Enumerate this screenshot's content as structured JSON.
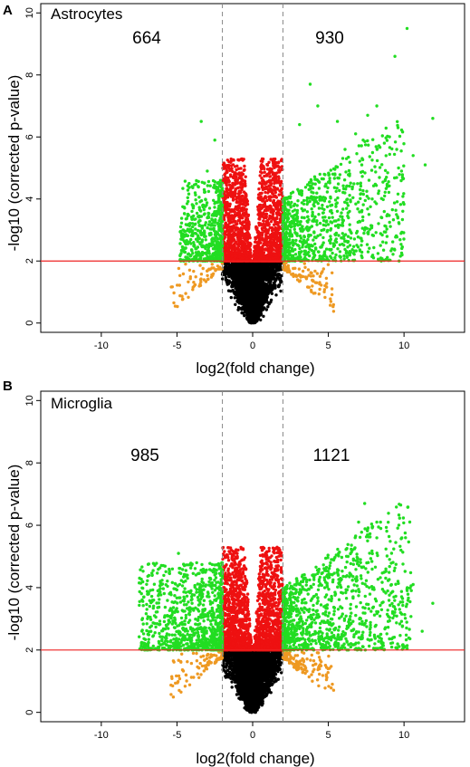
{
  "chart_data": [
    {
      "type": "scatter",
      "panel_label": "A",
      "title": "Astrocytes",
      "xlabel": "log2(fold change)",
      "ylabel": "-log10 (corrected p-value)",
      "xlim": [
        -14,
        14
      ],
      "ylim": [
        -0.3,
        10.3
      ],
      "xticks": [
        -10,
        -5,
        0,
        5,
        10
      ],
      "yticks": [
        0,
        2,
        4,
        6,
        8,
        10
      ],
      "threshold_y": 2,
      "threshold_x": [
        -2,
        2
      ],
      "counts": {
        "down": "664",
        "up": "930"
      },
      "colors": {
        "significant_fc": "#22dd22",
        "significant_small_fc": "#ee1111",
        "nonsig_fc": "#ee9922",
        "nonsig": "#000000",
        "threshold_line": "#ee2222",
        "fc_line": "#888888"
      },
      "series": [
        {
          "name": "up_highlight",
          "color": "#22dd22",
          "x": [
            10.2,
            9.4,
            11.9,
            9.6,
            7.6,
            8.2,
            3.8,
            5.6,
            4.3,
            6.8,
            3.1,
            7.3,
            11.4,
            6.1,
            8.7,
            10.6,
            9.5,
            5.3,
            7.9,
            4.7,
            3.6,
            6.4,
            2.6,
            8.9,
            3.4
          ],
          "y": [
            9.5,
            8.6,
            6.6,
            6.3,
            6.7,
            7.0,
            7.7,
            6.5,
            7.0,
            6.1,
            6.4,
            5.9,
            5.1,
            5.6,
            5.8,
            5.4,
            3.5,
            4.8,
            4.0,
            3.3,
            3.1,
            3.6,
            2.4,
            4.4,
            2.8
          ]
        },
        {
          "name": "down_highlight",
          "color": "#22dd22",
          "x": [
            -3.4,
            -2.5,
            -3.8,
            -4.2,
            -2.9,
            -3.3,
            -2.4,
            -4.6,
            -3.0,
            -2.2,
            -3.9,
            -2.7
          ],
          "y": [
            6.5,
            5.9,
            4.2,
            4.5,
            3.4,
            2.9,
            2.5,
            3.0,
            4.9,
            3.7,
            2.6,
            3.2
          ]
        }
      ],
      "scatter_params": {
        "up_n": 900,
        "down_n": 650,
        "sig_n": 1900,
        "ns_n": 2600,
        "orange_n": 160
      }
    },
    {
      "type": "scatter",
      "panel_label": "B",
      "title": "Microglia",
      "xlabel": "log2(fold change)",
      "ylabel": "-log10 (corrected p-value)",
      "xlim": [
        -14,
        14
      ],
      "ylim": [
        -0.3,
        10.3
      ],
      "xticks": [
        -10,
        -5,
        0,
        5,
        10
      ],
      "yticks": [
        0,
        2,
        4,
        6,
        8,
        10
      ],
      "threshold_y": 2,
      "threshold_x": [
        -2,
        2
      ],
      "counts": {
        "down": "985",
        "up": "1121"
      },
      "colors": {
        "significant_fc": "#22dd22",
        "significant_small_fc": "#ee1111",
        "nonsig_fc": "#ee9922",
        "nonsig": "#000000",
        "threshold_line": "#ee2222",
        "fc_line": "#888888"
      },
      "series": [
        {
          "name": "up_highlight",
          "color": "#22dd22",
          "x": [
            7.4,
            8.2,
            7.0,
            10.1,
            9.8,
            11.9,
            11.2,
            6.3,
            8.8,
            5.2,
            7.7,
            9.3,
            4.8,
            10.6
          ],
          "y": [
            6.7,
            6.1,
            6.1,
            5.6,
            5.2,
            3.5,
            2.6,
            5.0,
            4.6,
            4.9,
            4.0,
            3.4,
            3.7,
            4.1
          ]
        },
        {
          "name": "down_highlight",
          "color": "#22dd22",
          "x": [
            -4.9,
            -7.2,
            -6.1,
            -5.3,
            -4.3,
            -6.8,
            -3.7,
            -5.8,
            -4.0,
            -2.6
          ],
          "y": [
            5.1,
            3.7,
            4.2,
            4.6,
            4.3,
            3.4,
            4.8,
            3.1,
            3.5,
            4.5
          ]
        }
      ],
      "scatter_params": {
        "up_n": 1100,
        "down_n": 970,
        "sig_n": 2000,
        "ns_n": 3000,
        "orange_n": 220
      }
    }
  ]
}
